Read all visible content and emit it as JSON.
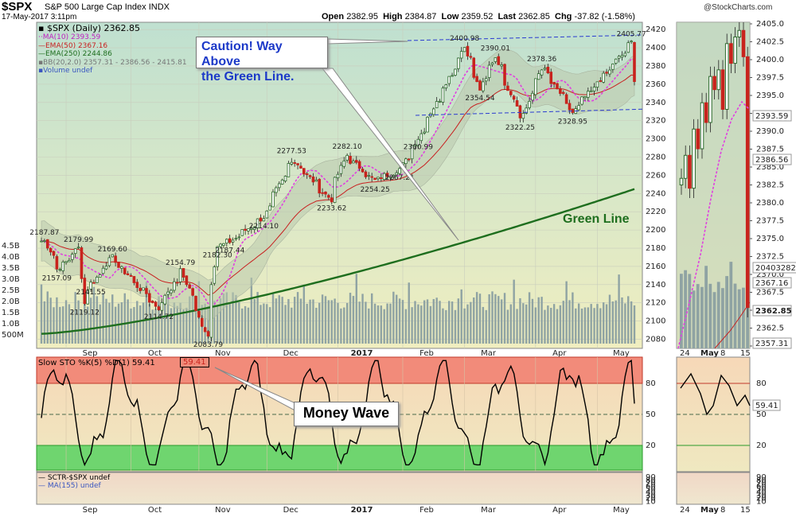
{
  "header": {
    "symbol": "$SPX",
    "description": "S&P 500 Large Cap Index",
    "exchange": "INDX",
    "date": "17-May-2017 3:11pm",
    "watermark": "@StockCharts.com",
    "open_label": "Open",
    "open": "2382.95",
    "high_label": "High",
    "high": "2384.87",
    "low_label": "Low",
    "low": "2359.52",
    "last_label": "Last",
    "last": "2362.85",
    "chg_label": "Chg",
    "chg": "-37.82 (-1.58%)"
  },
  "legend": {
    "price": "$SPX (Daily) 2362.85",
    "ma10": "MA(10) 2393.59",
    "ema50": "EMA(50) 2367.16",
    "ema250": "EMA(250) 2244.86",
    "bb": "BB(20,2.0) 2357.31 - 2386.56 - 2415.81",
    "volume": "Volume undef"
  },
  "annotations": {
    "caution_line1": "Caution! Way Above",
    "caution_line2": "the Green Line.",
    "green_line": "Green Line",
    "money_wave": "Money Wave"
  },
  "stoch_legend": {
    "label": "Slow STO %K(5) %D(1) 59.41",
    "value": "59.41"
  },
  "sctr_legend": {
    "sctr": "SCTR-$SPX undef",
    "ma155": "MA(155) undef"
  },
  "colors": {
    "up": "#2d6a2d",
    "down": "#c8231d",
    "ma10": "#e040e0",
    "ema50": "#c82020",
    "ema250": "#1e6e1e",
    "trend": "#2a3ad0",
    "bb_fill": "#b9c9ad",
    "volume": "#8fa3a3",
    "stoch_red": "#f28b7a",
    "stoch_green": "#6fd56f"
  },
  "chart_data": [
    {
      "type": "candlestick",
      "title": "$SPX (Daily)",
      "y_ticks": [
        2080,
        2100,
        2120,
        2140,
        2160,
        2180,
        2200,
        2220,
        2240,
        2260,
        2280,
        2300,
        2320,
        2340,
        2360,
        2380,
        2400,
        2420
      ],
      "y_range": [
        2070,
        2428
      ],
      "x_labels": [
        "Sep",
        "Oct",
        "Nov",
        "Dec",
        "2017",
        "Feb",
        "Mar",
        "Apr",
        "May"
      ],
      "volume_ticks": [
        "4.5B",
        "4.0B",
        "3.5B",
        "3.0B",
        "2.5B",
        "2.0B",
        "1.5B",
        "1.0B",
        "500M"
      ],
      "last_price": "2362.85",
      "series_keypoints": [
        {
          "x": "Aug 23",
          "y": 2187.87
        },
        {
          "x": "Aug 29",
          "y": 2157.09
        },
        {
          "x": "Sep 7",
          "y": 2179.99
        },
        {
          "x": "Sep 9",
          "y": 2119.12
        },
        {
          "x": "Sep 13",
          "y": 2141.55
        },
        {
          "x": "Sep 22",
          "y": 2169.6
        },
        {
          "x": "Oct 13",
          "y": 2114.72
        },
        {
          "x": "Oct 24",
          "y": 2154.79
        },
        {
          "x": "Nov 4",
          "y": 2083.79
        },
        {
          "x": "Nov 9",
          "y": 2182.3
        },
        {
          "x": "Nov 15",
          "y": 2187.44
        },
        {
          "x": "Nov 30",
          "y": 2214.1
        },
        {
          "x": "Dec 13",
          "y": 2277.53
        },
        {
          "x": "Dec 30",
          "y": 2233.62
        },
        {
          "x": "Jan 6",
          "y": 2282.1
        },
        {
          "x": "Jan 19",
          "y": 2254.25
        },
        {
          "x": "Jan 31",
          "y": 2267.21
        },
        {
          "x": "Feb 8",
          "y": 2300.99
        },
        {
          "x": "Mar 1",
          "y": 2400.98
        },
        {
          "x": "Mar 8",
          "y": 2354.54
        },
        {
          "x": "Mar 15",
          "y": 2390.01
        },
        {
          "x": "Mar 27",
          "y": 2322.25
        },
        {
          "x": "Apr 5",
          "y": 2378.36
        },
        {
          "x": "Apr 19",
          "y": 2328.95
        },
        {
          "x": "May 16",
          "y": 2405.77
        },
        {
          "x": "May 17",
          "y": 2362.85
        }
      ],
      "ema250_range": [
        2100,
        2244.86
      ],
      "inset_y_ticks": [
        "2405.0",
        "2402.5",
        "2400.0",
        "2397.5",
        "2395.0",
        "2392.5",
        "2390.0",
        "2387.5",
        "2385.0",
        "2382.5",
        "2380.0",
        "2377.5",
        "2375.0",
        "2372.5",
        "2370.0",
        "2367.5",
        "2365.0",
        "2362.5",
        "2360.0"
      ],
      "inset_markers": [
        "2393.59",
        "2386.56",
        "2367.16",
        "2362.85",
        "2357.31",
        "2040328246"
      ],
      "inset_x_labels": [
        "24",
        "May",
        "8",
        "15"
      ]
    },
    {
      "type": "line",
      "title": "Slow STO %K(5) %D(1)",
      "y_ticks": [
        20,
        50,
        80
      ],
      "zones": {
        "overbought": 80,
        "oversold": 20
      },
      "last_value": 59.41
    }
  ]
}
